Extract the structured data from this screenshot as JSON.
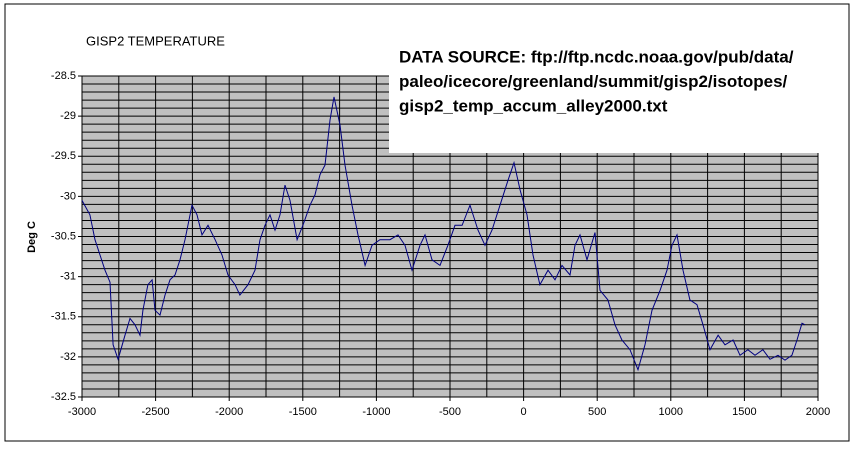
{
  "chart_data": {
    "type": "line",
    "title": "GISP2 TEMPERATURE",
    "annotation_lines": [
      "DATA SOURCE: ftp://ftp.ncdc.noaa.gov/pub/data/",
      "paleo/icecore/greenland/summit/gisp2/isotopes/",
      "gisp2_temp_accum_alley2000.txt"
    ],
    "y_label": "Deg C",
    "x": [
      -3000,
      -2946,
      -2912,
      -2878,
      -2844,
      -2810,
      -2789,
      -2755,
      -2708,
      -2674,
      -2640,
      -2606,
      -2586,
      -2552,
      -2524,
      -2504,
      -2470,
      -2436,
      -2402,
      -2368,
      -2334,
      -2300,
      -2253,
      -2219,
      -2185,
      -2144,
      -2096,
      -2049,
      -2008,
      -1960,
      -1927,
      -1872,
      -1825,
      -1791,
      -1757,
      -1723,
      -1689,
      -1655,
      -1621,
      -1587,
      -1539,
      -1499,
      -1451,
      -1417,
      -1383,
      -1349,
      -1315,
      -1288,
      -1247,
      -1213,
      -1166,
      -1125,
      -1077,
      -1030,
      -976,
      -908,
      -853,
      -806,
      -758,
      -704,
      -670,
      -622,
      -568,
      -514,
      -466,
      -418,
      -364,
      -310,
      -262,
      -215,
      -160,
      -106,
      -65,
      -24,
      23,
      64,
      111,
      166,
      213,
      261,
      315,
      349,
      383,
      431,
      485,
      519,
      573,
      621,
      668,
      723,
      777,
      825,
      872,
      927,
      974,
      1008,
      1042,
      1083,
      1130,
      1178,
      1219,
      1266,
      1321,
      1368,
      1423,
      1470,
      1524,
      1572,
      1626,
      1674,
      1728,
      1776,
      1823,
      1857,
      1891,
      1912
    ],
    "values": [
      -30.05,
      -30.23,
      -30.54,
      -30.73,
      -30.92,
      -31.07,
      -31.85,
      -32.03,
      -31.73,
      -31.52,
      -31.6,
      -31.73,
      -31.42,
      -31.1,
      -31.04,
      -31.42,
      -31.48,
      -31.23,
      -31.04,
      -30.98,
      -30.79,
      -30.54,
      -30.11,
      -30.23,
      -30.48,
      -30.36,
      -30.54,
      -30.73,
      -30.98,
      -31.1,
      -31.23,
      -31.1,
      -30.92,
      -30.54,
      -30.36,
      -30.23,
      -30.42,
      -30.23,
      -29.86,
      -30.05,
      -30.54,
      -30.36,
      -30.11,
      -29.98,
      -29.73,
      -29.61,
      -29.05,
      -28.76,
      -29.11,
      -29.61,
      -30.11,
      -30.48,
      -30.86,
      -30.61,
      -30.54,
      -30.54,
      -30.48,
      -30.61,
      -30.92,
      -30.61,
      -30.48,
      -30.79,
      -30.86,
      -30.61,
      -30.36,
      -30.36,
      -30.11,
      -30.42,
      -30.61,
      -30.42,
      -30.11,
      -29.8,
      -29.58,
      -29.92,
      -30.23,
      -30.73,
      -31.1,
      -30.92,
      -31.04,
      -30.86,
      -30.98,
      -30.61,
      -30.48,
      -30.79,
      -30.45,
      -31.17,
      -31.29,
      -31.6,
      -31.79,
      -31.91,
      -32.16,
      -31.85,
      -31.42,
      -31.17,
      -30.92,
      -30.61,
      -30.48,
      -30.92,
      -31.29,
      -31.35,
      -31.6,
      -31.91,
      -31.73,
      -31.85,
      -31.79,
      -31.98,
      -31.91,
      -31.98,
      -31.91,
      -32.03,
      -31.98,
      -32.04,
      -31.98,
      -31.79,
      -31.58,
      -31.6
    ],
    "color": "#000080",
    "xlim": [
      -3000,
      2000
    ],
    "xticks": [
      -3000,
      -2500,
      -2000,
      -1500,
      -1000,
      -500,
      0,
      500,
      1000,
      1500,
      2000
    ],
    "ylim": [
      -32.5,
      -28.5
    ],
    "yticks": [
      -28.5,
      -29,
      -29.5,
      -30,
      -30.5,
      -31,
      -31.5,
      -32,
      -32.5
    ],
    "x_minor_step": 250,
    "y_minor_step": 0.1,
    "grid": true,
    "plot_background": "#c0c0c0"
  }
}
